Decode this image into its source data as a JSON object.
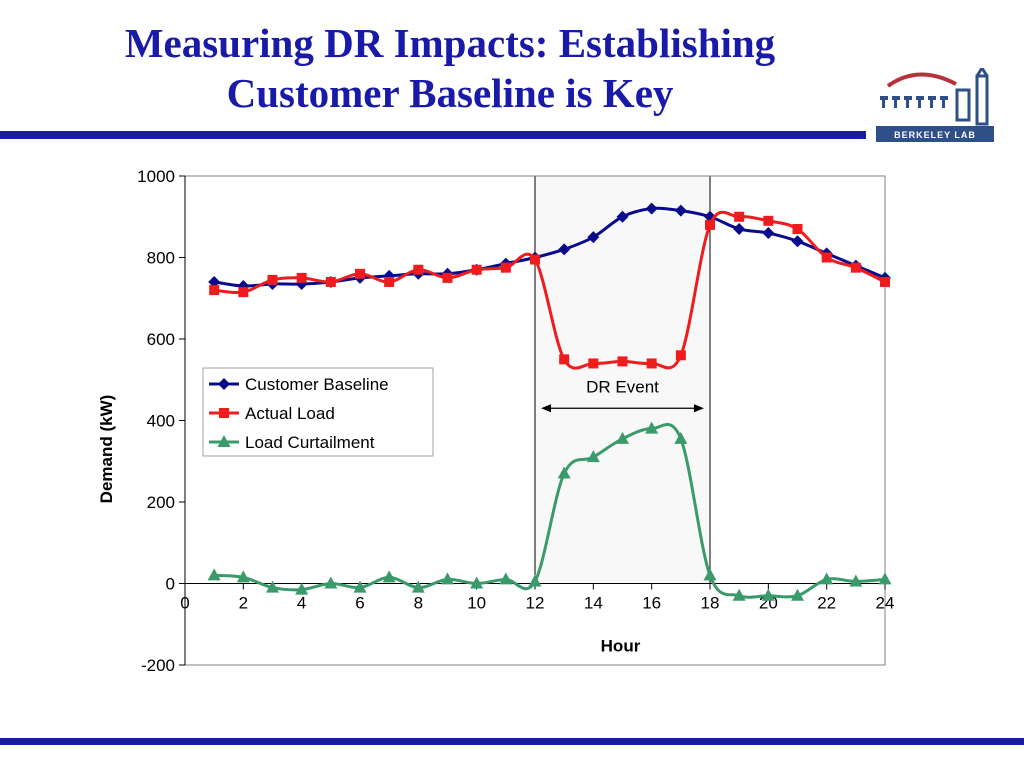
{
  "slide": {
    "title_line1": "Measuring DR Impacts: Establishing",
    "title_line2": "Customer Baseline is Key",
    "logo_text": "BERKELEY LAB"
  },
  "colors": {
    "title": "#1a1aa8",
    "rule": "#1a1aa8",
    "baseline": "#0a0a8c",
    "actual": "#ee1c1c",
    "curtailment": "#3a9a6a",
    "logo_red": "#b5323a",
    "logo_blue": "#2e4f88"
  },
  "chart_data": {
    "type": "line",
    "xlabel": "Hour",
    "ylabel": "Demand (kW)",
    "xlim": [
      0,
      24
    ],
    "ylim": [
      -200,
      1000
    ],
    "x_ticks": [
      0,
      2,
      4,
      6,
      8,
      10,
      12,
      14,
      16,
      18,
      20,
      22,
      24
    ],
    "y_ticks": [
      -200,
      0,
      200,
      400,
      600,
      800,
      1000
    ],
    "grid": false,
    "legend_position": "middle-left",
    "annotation": {
      "text": "DR Event",
      "x_start": 12,
      "x_end": 18
    },
    "x": [
      1,
      2,
      3,
      4,
      5,
      6,
      7,
      8,
      9,
      10,
      11,
      12,
      13,
      14,
      15,
      16,
      17,
      18,
      19,
      20,
      21,
      22,
      23,
      24
    ],
    "series": [
      {
        "name": "Customer Baseline",
        "marker": "diamond",
        "values": [
          740,
          730,
          735,
          735,
          740,
          750,
          755,
          760,
          760,
          770,
          785,
          800,
          820,
          850,
          900,
          920,
          915,
          900,
          870,
          860,
          840,
          810,
          780,
          750
        ]
      },
      {
        "name": "Actual Load",
        "marker": "square",
        "values": [
          720,
          715,
          745,
          750,
          740,
          760,
          740,
          770,
          750,
          770,
          775,
          795,
          550,
          540,
          545,
          540,
          560,
          880,
          900,
          890,
          870,
          800,
          775,
          740
        ]
      },
      {
        "name": "Load Curtailment",
        "marker": "triangle",
        "values": [
          20,
          15,
          -10,
          -15,
          0,
          -10,
          15,
          -10,
          10,
          0,
          10,
          5,
          270,
          310,
          355,
          380,
          355,
          20,
          -30,
          -30,
          -30,
          10,
          5,
          10
        ]
      }
    ]
  }
}
